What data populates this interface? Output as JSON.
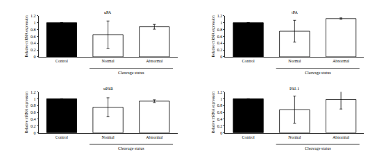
{
  "chart_data": [
    {
      "type": "bar",
      "title": "uPA",
      "categories": [
        "Control",
        "Normal",
        "Abnormal"
      ],
      "values": [
        1,
        0.65,
        0.88
      ],
      "errors": [
        null,
        0.4,
        0.07
      ],
      "colors": [
        "#000000",
        "#ffffff",
        "#ffffff"
      ],
      "x_label": "Cleavage status",
      "y_label": "Relative mRNA expression",
      "ylim": [
        0,
        1.2
      ],
      "yticks": [
        0,
        0.2,
        0.4,
        0.6,
        0.8,
        1,
        1.2
      ]
    },
    {
      "type": "bar",
      "title": "tPA",
      "categories": [
        "Control",
        "Normal",
        "Abnormal"
      ],
      "values": [
        1,
        0.75,
        1.12
      ],
      "errors": [
        null,
        0.32,
        0.02
      ],
      "colors": [
        "#000000",
        "#ffffff",
        "#ffffff"
      ],
      "x_label": "Cleavage status",
      "y_label": "Relative mRNA expression",
      "ylim": [
        0,
        1.2
      ],
      "yticks": [
        0,
        0.2,
        0.4,
        0.6,
        0.8,
        1,
        1.2
      ]
    },
    {
      "type": "bar",
      "title": "uPAR",
      "categories": [
        "Control",
        "Normal",
        "Abnormal"
      ],
      "values": [
        1,
        0.75,
        0.93
      ],
      "errors": [
        null,
        0.28,
        0.04
      ],
      "colors": [
        "#000000",
        "#ffffff",
        "#ffffff"
      ],
      "x_label": "Cleavage status",
      "y_label": "Relative mRNA expression",
      "ylim": [
        0,
        1.2
      ],
      "yticks": [
        0,
        0.2,
        0.4,
        0.6,
        0.8,
        1,
        1.2
      ]
    },
    {
      "type": "bar",
      "title": "PAI-1",
      "categories": [
        "Control",
        "Normal",
        "Abnormal"
      ],
      "values": [
        1,
        0.68,
        0.98
      ],
      "errors": [
        null,
        0.4,
        0.28
      ],
      "colors": [
        "#000000",
        "#ffffff",
        "#ffffff"
      ],
      "x_label": "Cleavage status",
      "y_label": "Relative mRNA expression",
      "ylim": [
        0,
        1.2
      ],
      "yticks": [
        0,
        0.2,
        0.4,
        0.6,
        0.8,
        1,
        1.2
      ]
    }
  ]
}
